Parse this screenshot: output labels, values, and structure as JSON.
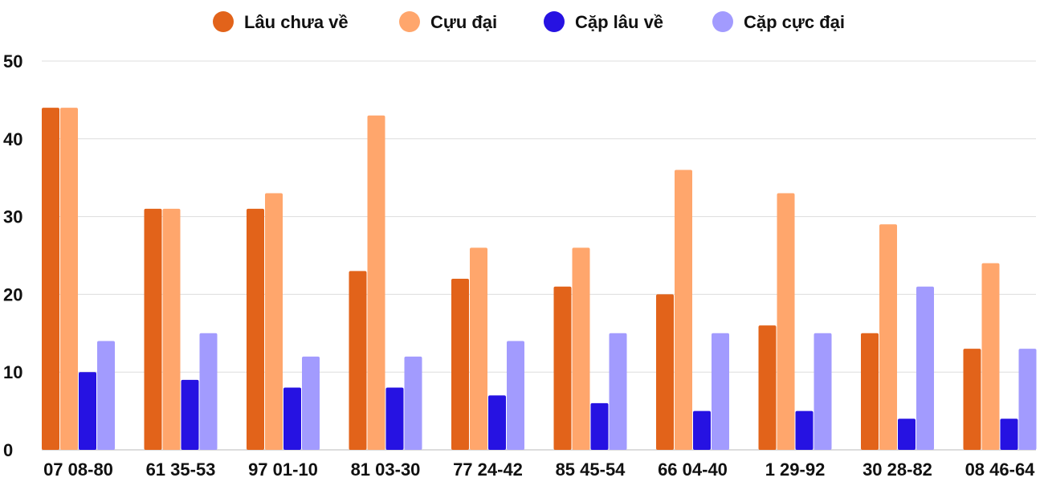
{
  "chart_data": {
    "type": "bar",
    "categories": [
      "07 08-80",
      "61 35-53",
      "97 01-10",
      "81 03-30",
      "77 24-42",
      "85 45-54",
      "66 04-40",
      "1 29-92",
      "30 28-82",
      "08 46-64"
    ],
    "series": [
      {
        "name": "Lâu chưa về",
        "color": "#E2631A",
        "values": [
          44,
          31,
          31,
          23,
          22,
          21,
          20,
          16,
          15,
          13
        ]
      },
      {
        "name": "Cựu đại",
        "color": "#FFA66C",
        "values": [
          44,
          31,
          33,
          43,
          26,
          26,
          36,
          33,
          29,
          24
        ]
      },
      {
        "name": "Cặp lâu về",
        "color": "#2612E2",
        "values": [
          10,
          9,
          8,
          8,
          7,
          6,
          5,
          5,
          4,
          4
        ]
      },
      {
        "name": "Cặp cực đại",
        "color": "#A29BFE",
        "values": [
          14,
          15,
          12,
          12,
          14,
          15,
          15,
          15,
          21,
          13
        ]
      }
    ],
    "ylim": [
      0,
      50
    ],
    "yticks": [
      "0",
      "10",
      "20",
      "30",
      "40",
      "50"
    ],
    "grid": true,
    "legend": "top"
  }
}
